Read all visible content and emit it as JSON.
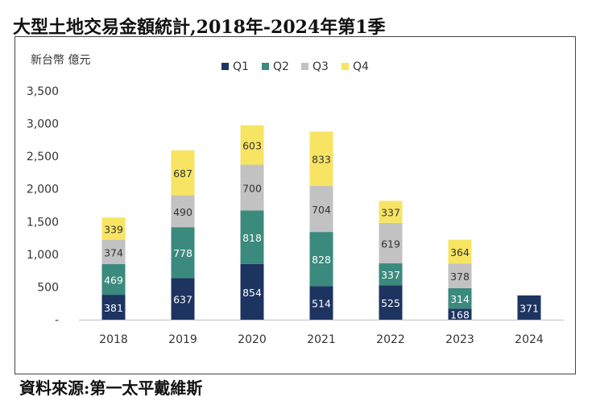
{
  "title": "大型土地交易金額統計,2018年-2024年第1季",
  "source": "資料來源:第一太平戴維斯",
  "colors": {
    "Q1": "#1d3461",
    "Q2": "#3a8a7d",
    "Q3": "#c2c2c2",
    "Q4": "#f7e463"
  },
  "chart_data": {
    "type": "bar",
    "stacked": true,
    "title": "大型土地交易金額統計,2018年-2024年第1季",
    "ylabel": "新台幣 億元",
    "xlabel": "",
    "ylim": [
      0,
      3500
    ],
    "yticks": [
      "-",
      "500",
      "1,000",
      "1,500",
      "2,000",
      "2,500",
      "3,000",
      "3,500"
    ],
    "yticks_values": [
      0,
      500,
      1000,
      1500,
      2000,
      2500,
      3000,
      3500
    ],
    "categories": [
      "2018",
      "2019",
      "2020",
      "2021",
      "2022",
      "2023",
      "2024"
    ],
    "series": [
      {
        "name": "Q1",
        "values": [
          381,
          637,
          854,
          514,
          525,
          168,
          371
        ]
      },
      {
        "name": "Q2",
        "values": [
          469,
          778,
          818,
          828,
          337,
          314,
          null
        ]
      },
      {
        "name": "Q3",
        "values": [
          374,
          490,
          700,
          704,
          619,
          378,
          null
        ]
      },
      {
        "name": "Q4",
        "values": [
          339,
          687,
          603,
          833,
          337,
          364,
          null
        ]
      }
    ],
    "legend_position": "top",
    "grid": false,
    "data_labels": true
  }
}
